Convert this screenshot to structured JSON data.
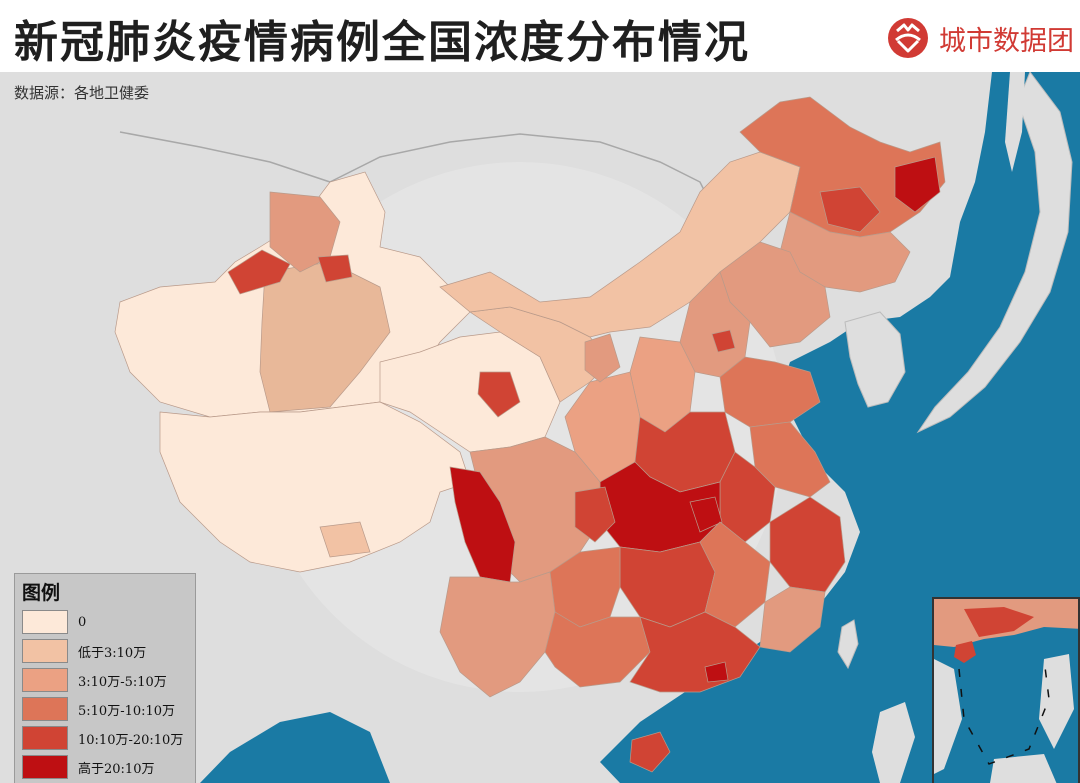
{
  "header": {
    "title": "新冠肺炎疫情病例全国浓度分布情况",
    "brand_name": "城市数据团",
    "brand_icon": "city-data-group-logo-icon",
    "brand_color": "#d13a34"
  },
  "map": {
    "source": "数据源：各地卫健委",
    "sea_color": "#1a7aa4",
    "land_color": "#dedede"
  },
  "legend": {
    "title": "图例",
    "items": [
      {
        "label": "0",
        "color": "#fde9d9"
      },
      {
        "label": "低于3:10万",
        "color": "#f2c2a4"
      },
      {
        "label": "3:10万-5:10万",
        "color": "#eba183"
      },
      {
        "label": "5:10万-10:10万",
        "color": "#dd7558"
      },
      {
        "label": "10:10万-20:10万",
        "color": "#d04434"
      },
      {
        "label": "高于20:10万",
        "color": "#be0f12"
      }
    ]
  }
}
